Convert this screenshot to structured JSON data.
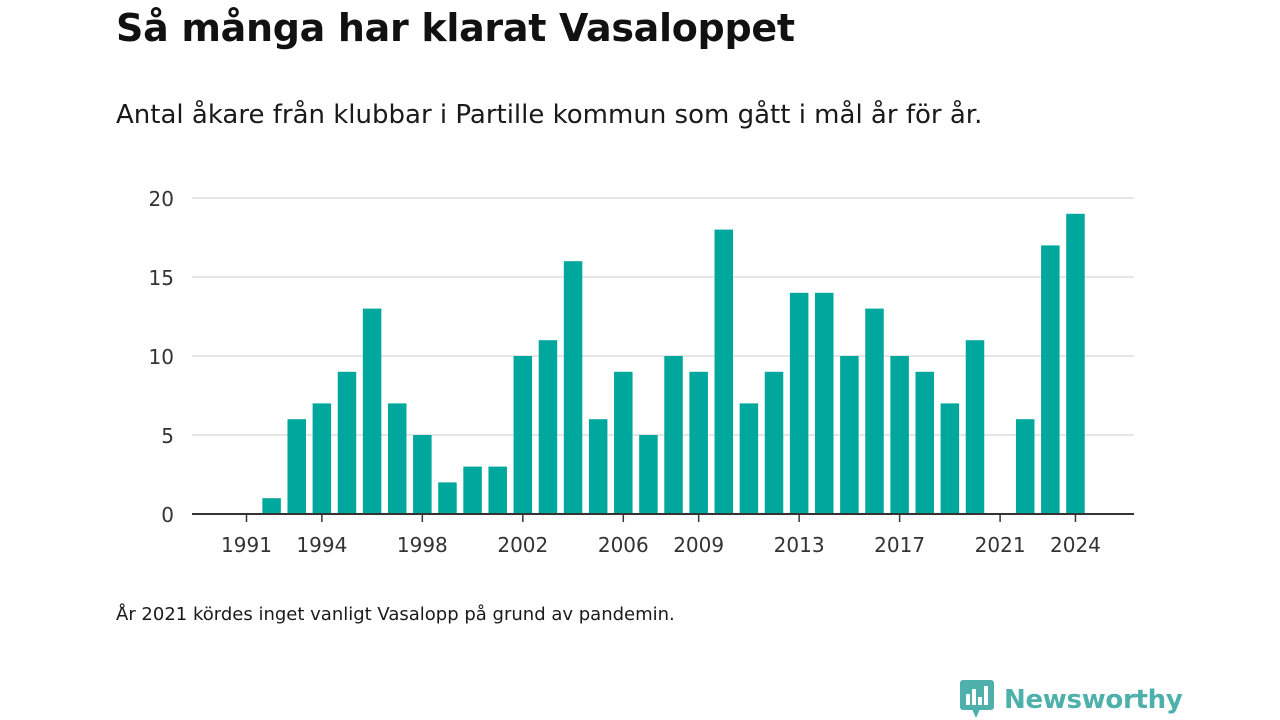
{
  "colors": {
    "bar": "#00a79d",
    "grid": "#dddddd",
    "axis": "#333333",
    "logo": "#4eb0aa"
  },
  "header": {
    "title": "Så många har klarat Vasaloppet",
    "subtitle": "Antal åkare från klubbar i Partille kommun som gått i mål år för år."
  },
  "footer": {
    "note": "År 2021 kördes inget vanligt Vasalopp på grund av pandemin.",
    "logo_text": "Newsworthy",
    "logo_icon": "bar-chart-speech-bubble-icon"
  },
  "chart_data": {
    "type": "bar",
    "title": "Så många har klarat Vasaloppet",
    "subtitle": "Antal åkare från klubbar i Partille kommun som gått i mål år för år.",
    "xlabel": "",
    "ylabel": "",
    "ylim": [
      0,
      20
    ],
    "yticks": [
      0,
      5,
      10,
      15,
      20
    ],
    "grid": true,
    "legend": "none",
    "categories": [
      1991,
      1992,
      1993,
      1994,
      1995,
      1996,
      1997,
      1998,
      1999,
      2000,
      2001,
      2002,
      2003,
      2004,
      2005,
      2006,
      2007,
      2008,
      2009,
      2010,
      2011,
      2012,
      2013,
      2014,
      2015,
      2016,
      2017,
      2018,
      2019,
      2020,
      2021,
      2022,
      2023,
      2024
    ],
    "values": [
      0,
      1,
      6,
      7,
      9,
      13,
      7,
      5,
      2,
      3,
      3,
      10,
      11,
      16,
      6,
      9,
      5,
      10,
      9,
      18,
      7,
      9,
      14,
      14,
      10,
      13,
      10,
      9,
      7,
      11,
      0,
      6,
      17,
      19
    ],
    "xtick_labels": [
      "1991",
      "1994",
      "1998",
      "2002",
      "2006",
      "2009",
      "2013",
      "2017",
      "2021",
      "2024"
    ]
  }
}
